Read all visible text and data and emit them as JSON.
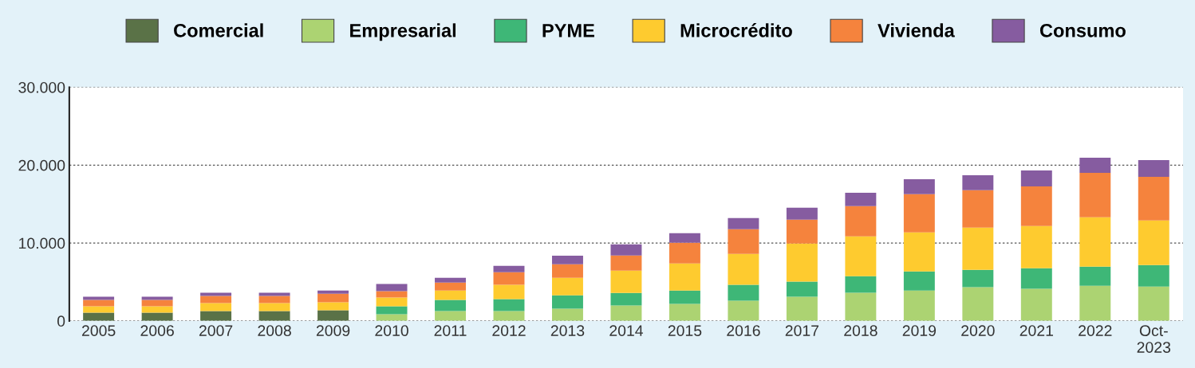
{
  "chart_data": {
    "type": "bar",
    "stacked": true,
    "categories": [
      "2005",
      "2006",
      "2007",
      "2008",
      "2009",
      "2010",
      "2011",
      "2012",
      "2013",
      "2014",
      "2015",
      "2016",
      "2017",
      "2018",
      "2019",
      "2020",
      "2021",
      "2022",
      "Oct-\n2023"
    ],
    "series": [
      {
        "name": "Comercial",
        "color": "#5a7247",
        "values": [
          1050,
          1050,
          1260,
          1260,
          1360,
          null,
          null,
          null,
          null,
          null,
          null,
          null,
          null,
          null,
          null,
          null,
          null,
          null,
          null
        ]
      },
      {
        "name": "Empresarial",
        "color": "#acd372",
        "values": [
          null,
          null,
          null,
          null,
          null,
          850,
          1260,
          1260,
          1560,
          1970,
          2180,
          2590,
          3100,
          3610,
          3910,
          4320,
          4120,
          4520,
          4420
        ]
      },
      {
        "name": "PYME",
        "color": "#3eb777",
        "values": [
          null,
          null,
          null,
          null,
          null,
          1020,
          1430,
          1530,
          1730,
          1630,
          1730,
          2040,
          1940,
          2140,
          2450,
          2240,
          2650,
          2450,
          2760
        ]
      },
      {
        "name": "Microcrédito",
        "color": "#fecb2f",
        "values": [
          820,
          820,
          1020,
          1020,
          1020,
          1120,
          1220,
          1840,
          2240,
          2860,
          3470,
          3980,
          4900,
          5100,
          5000,
          5410,
          5410,
          6330,
          5710
        ]
      },
      {
        "name": "Vivienda",
        "color": "#f5833d",
        "values": [
          820,
          820,
          920,
          920,
          1120,
          820,
          1020,
          1630,
          1730,
          1940,
          2650,
          3160,
          3060,
          3880,
          4900,
          4800,
          5100,
          5710,
          5610
        ]
      },
      {
        "name": "Consumo",
        "color": "#865ca0",
        "values": [
          410,
          410,
          410,
          410,
          410,
          920,
          610,
          820,
          1120,
          1430,
          1220,
          1430,
          1530,
          1730,
          1940,
          1940,
          2040,
          1940,
          2140
        ]
      }
    ],
    "ylim": [
      0,
      30000
    ],
    "yticks": [
      {
        "value": 0,
        "label": "0"
      },
      {
        "value": 10000,
        "label": "10.000"
      },
      {
        "value": 20000,
        "label": "20.000"
      },
      {
        "value": 30000,
        "label": "30.000"
      }
    ],
    "grid": "y",
    "legend": "top"
  }
}
